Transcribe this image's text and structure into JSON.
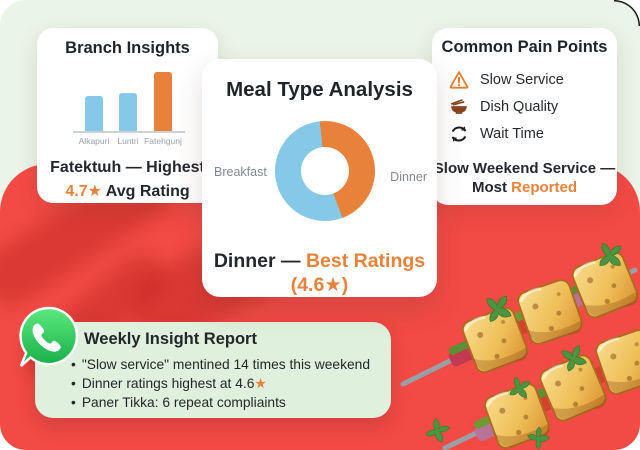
{
  "colors": {
    "background_top": "#eaf4e7",
    "background_red": "#f24a45",
    "card_white": "#ffffff",
    "report_card_green": "#dff0dc",
    "accent_orange": "#e8813a",
    "bar_blue": "#85c8e8",
    "whatsapp_green": "#25c757",
    "text_dark": "#24282c",
    "text_gray": "#9aa0a5"
  },
  "branch_card": {
    "title": "Branch Insights",
    "highlight_line": "Fatektɯh — Highest",
    "rating_value": "4.7★",
    "rating_suffix": " Avg Rating"
  },
  "meal_card": {
    "title": "Meal Type Analysis",
    "summary_prefix": "Dinner — ",
    "summary_highlight": "Best Ratings (4.6★)"
  },
  "pain_card": {
    "title": "Common Pain Points",
    "items": [
      {
        "icon": "warning-icon",
        "label": "Slow Service"
      },
      {
        "icon": "bowl-icon",
        "label": "Dish Quality"
      },
      {
        "icon": "refresh-icon",
        "label": "Wait Time"
      }
    ],
    "summary_line1": "Slow Weekend Service —",
    "summary_prefix": "Most ",
    "summary_highlight": "Reported"
  },
  "report_card": {
    "icon": "whatsapp-icon",
    "title": "Weekly Insight Report",
    "bullet_char": "•",
    "bullets": [
      {
        "text": "\"Slow service\" mentined 14 times this weekend",
        "star": ""
      },
      {
        "text": "Dinner ratings highest at 4.6",
        "star": "★"
      },
      {
        "text": "Paner Tikka: 6 repeat compliaints",
        "star": ""
      }
    ]
  },
  "chart_data": [
    {
      "type": "bar",
      "title": "Branch Insights",
      "categories": [
        "Alkapuri",
        "Luntri",
        "Fatehgunj"
      ],
      "values": [
        4.0,
        4.1,
        4.7
      ],
      "colors": [
        "#85c8e8",
        "#85c8e8",
        "#e8823b"
      ],
      "xlabel": "",
      "ylabel": "Avg Rating (estimated, axis unlabeled)",
      "ylim": [
        3.0,
        4.85
      ],
      "grid": false,
      "annotation": "Fatektɯh — Highest 4.7★ Avg Rating"
    },
    {
      "type": "pie",
      "title": "Meal Type Analysis",
      "labels": [
        "Dinner",
        "Breakfast"
      ],
      "values": [
        46,
        54
      ],
      "colors": [
        "#e8823b",
        "#85c8e8"
      ],
      "donut": true,
      "start_angle_deg": -6,
      "legend_position": "sides",
      "annotation": "Dinner — Best Ratings (4.6★)"
    }
  ]
}
